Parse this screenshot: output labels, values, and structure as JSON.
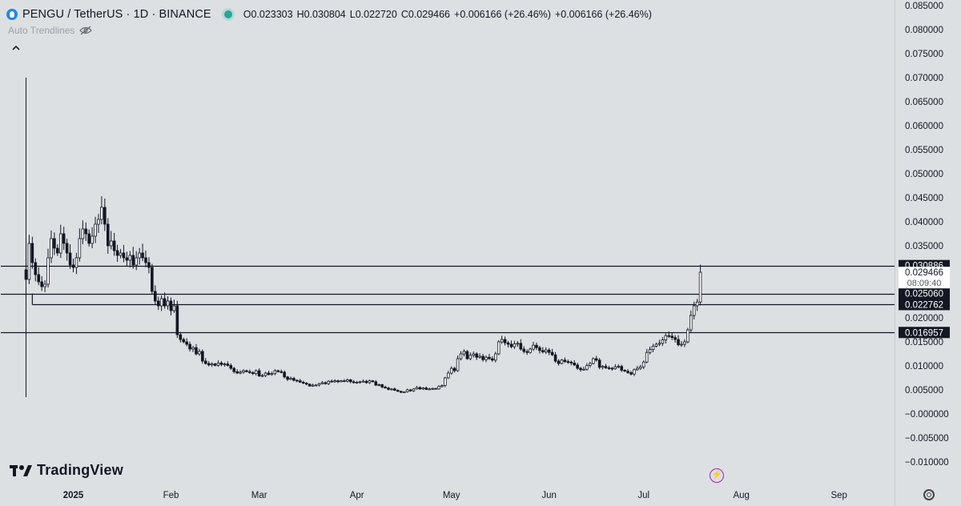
{
  "header": {
    "symbol_title": "PENGU / TetherUS · 1D · BINANCE",
    "ohlc": {
      "o_label": "O",
      "o": "0.023303",
      "h_label": "H",
      "h": "0.030804",
      "l_label": "L",
      "l": "0.022720",
      "c_label": "C",
      "c": "0.029466",
      "change": "+0.006166 (+26.46%)",
      "change2": "+0.006166 (+26.46%)"
    },
    "indicator_label": "Auto Trendlines",
    "brand": "TradingView"
  },
  "colors": {
    "background": "#dde0e3",
    "candle": "#131722",
    "live_dot": "#26a69a",
    "symbol_icon": "#1e88e5",
    "alert_icon": "#9c27b0"
  },
  "chart_data": {
    "type": "candlestick",
    "title": "PENGU / TetherUS · 1D · BINANCE",
    "xlabel": "",
    "ylabel": "",
    "ylim": [
      -0.0125,
      0.0875
    ],
    "y_ticks": [
      "0.085000",
      "0.080000",
      "0.075000",
      "0.070000",
      "0.065000",
      "0.060000",
      "0.055000",
      "0.050000",
      "0.045000",
      "0.040000",
      "0.035000",
      "0.030000",
      "0.025000",
      "0.020000",
      "0.015000",
      "0.010000",
      "0.005000",
      "−0.000000",
      "−0.005000",
      "−0.010000"
    ],
    "x_ticks": [
      {
        "label": "2025",
        "date": "2025-01-01",
        "bold": true
      },
      {
        "label": "Feb",
        "date": "2025-02-01"
      },
      {
        "label": "Mar",
        "date": "2025-03-01"
      },
      {
        "label": "Apr",
        "date": "2025-04-01"
      },
      {
        "label": "May",
        "date": "2025-05-01"
      },
      {
        "label": "Jun",
        "date": "2025-06-01"
      },
      {
        "label": "Jul",
        "date": "2025-07-01"
      },
      {
        "label": "Aug",
        "date": "2025-08-01"
      },
      {
        "label": "Sep",
        "date": "2025-09-01"
      }
    ],
    "x_range": [
      "2024-12-09",
      "2025-09-16"
    ],
    "candles_note": "daily closes from 2024-12-17",
    "start_date": "2024-12-17",
    "first_candle": {
      "o": 0.03,
      "h": 0.07,
      "l": 0.0035,
      "c": 0.028
    },
    "closes": [
      0.028,
      0.0355,
      0.0315,
      0.029,
      0.0275,
      0.0265,
      0.027,
      0.0325,
      0.0365,
      0.0345,
      0.0335,
      0.0375,
      0.0355,
      0.0335,
      0.031,
      0.0305,
      0.0325,
      0.0365,
      0.0385,
      0.0375,
      0.0355,
      0.037,
      0.0395,
      0.0405,
      0.043,
      0.0395,
      0.035,
      0.036,
      0.034,
      0.033,
      0.0335,
      0.0325,
      0.032,
      0.033,
      0.031,
      0.0325,
      0.0335,
      0.0325,
      0.0315,
      0.0305,
      0.0255,
      0.0235,
      0.0225,
      0.024,
      0.0225,
      0.0235,
      0.0215,
      0.0225,
      0.0165,
      0.0155,
      0.015,
      0.0145,
      0.0135,
      0.0138,
      0.0125,
      0.013,
      0.011,
      0.0105,
      0.0102,
      0.0104,
      0.0101,
      0.0106,
      0.0103,
      0.0104,
      0.0101,
      0.0095,
      0.0088,
      0.0085,
      0.0087,
      0.009,
      0.0088,
      0.0086,
      0.0084,
      0.009,
      0.0079,
      0.008,
      0.0085,
      0.0082,
      0.0084,
      0.009,
      0.0088,
      0.0087,
      0.0077,
      0.0072,
      0.0074,
      0.007,
      0.0069,
      0.0066,
      0.0064,
      0.0062,
      0.0058,
      0.006,
      0.006,
      0.0063,
      0.0065,
      0.0063,
      0.0068,
      0.0067,
      0.0069,
      0.0067,
      0.0069,
      0.0068,
      0.0071,
      0.0067,
      0.0065,
      0.0066,
      0.0067,
      0.0068,
      0.0065,
      0.0069,
      0.0067,
      0.006,
      0.0061,
      0.0056,
      0.0054,
      0.0051,
      0.0052,
      0.0049,
      0.0047,
      0.0045,
      0.0046,
      0.005,
      0.0048,
      0.0052,
      0.0055,
      0.0052,
      0.0054,
      0.0051,
      0.0052,
      0.0053,
      0.0052,
      0.0057,
      0.0059,
      0.0075,
      0.0085,
      0.0095,
      0.009,
      0.0115,
      0.0125,
      0.013,
      0.0115,
      0.0122,
      0.0125,
      0.0118,
      0.012,
      0.0113,
      0.0118,
      0.0115,
      0.0112,
      0.0125,
      0.015,
      0.0155,
      0.0148,
      0.0145,
      0.014,
      0.0146,
      0.0147,
      0.0135,
      0.013,
      0.0128,
      0.0135,
      0.0143,
      0.0138,
      0.0132,
      0.0129,
      0.0133,
      0.0128,
      0.0123,
      0.011,
      0.0105,
      0.0112,
      0.0109,
      0.0108,
      0.0106,
      0.0102,
      0.0095,
      0.0092,
      0.0093,
      0.0101,
      0.0105,
      0.0115,
      0.0112,
      0.0097,
      0.0099,
      0.0096,
      0.0095,
      0.0094,
      0.0098,
      0.0099,
      0.0091,
      0.0089,
      0.0086,
      0.0083,
      0.0092,
      0.0095,
      0.0098,
      0.0108,
      0.0128,
      0.0134,
      0.0141,
      0.0145,
      0.0147,
      0.0154,
      0.0163,
      0.0162,
      0.0159,
      0.0155,
      0.0144,
      0.0145,
      0.015,
      0.0175,
      0.0205,
      0.0225,
      0.0233,
      0.0295
    ],
    "levels": [
      {
        "label": "0.030886",
        "value": 0.030886,
        "start_date": "2024-12-09"
      },
      {
        "label": "0.025060",
        "value": 0.02506,
        "start_date": "2024-12-09"
      },
      {
        "label": "0.022762",
        "value": 0.022762,
        "start_date": "2024-12-19"
      },
      {
        "label": "0.016957",
        "value": 0.016957,
        "start_date": "2024-12-09"
      }
    ],
    "last_price": {
      "label": "0.029466",
      "value": 0.029466,
      "countdown": "08:09:40"
    }
  }
}
